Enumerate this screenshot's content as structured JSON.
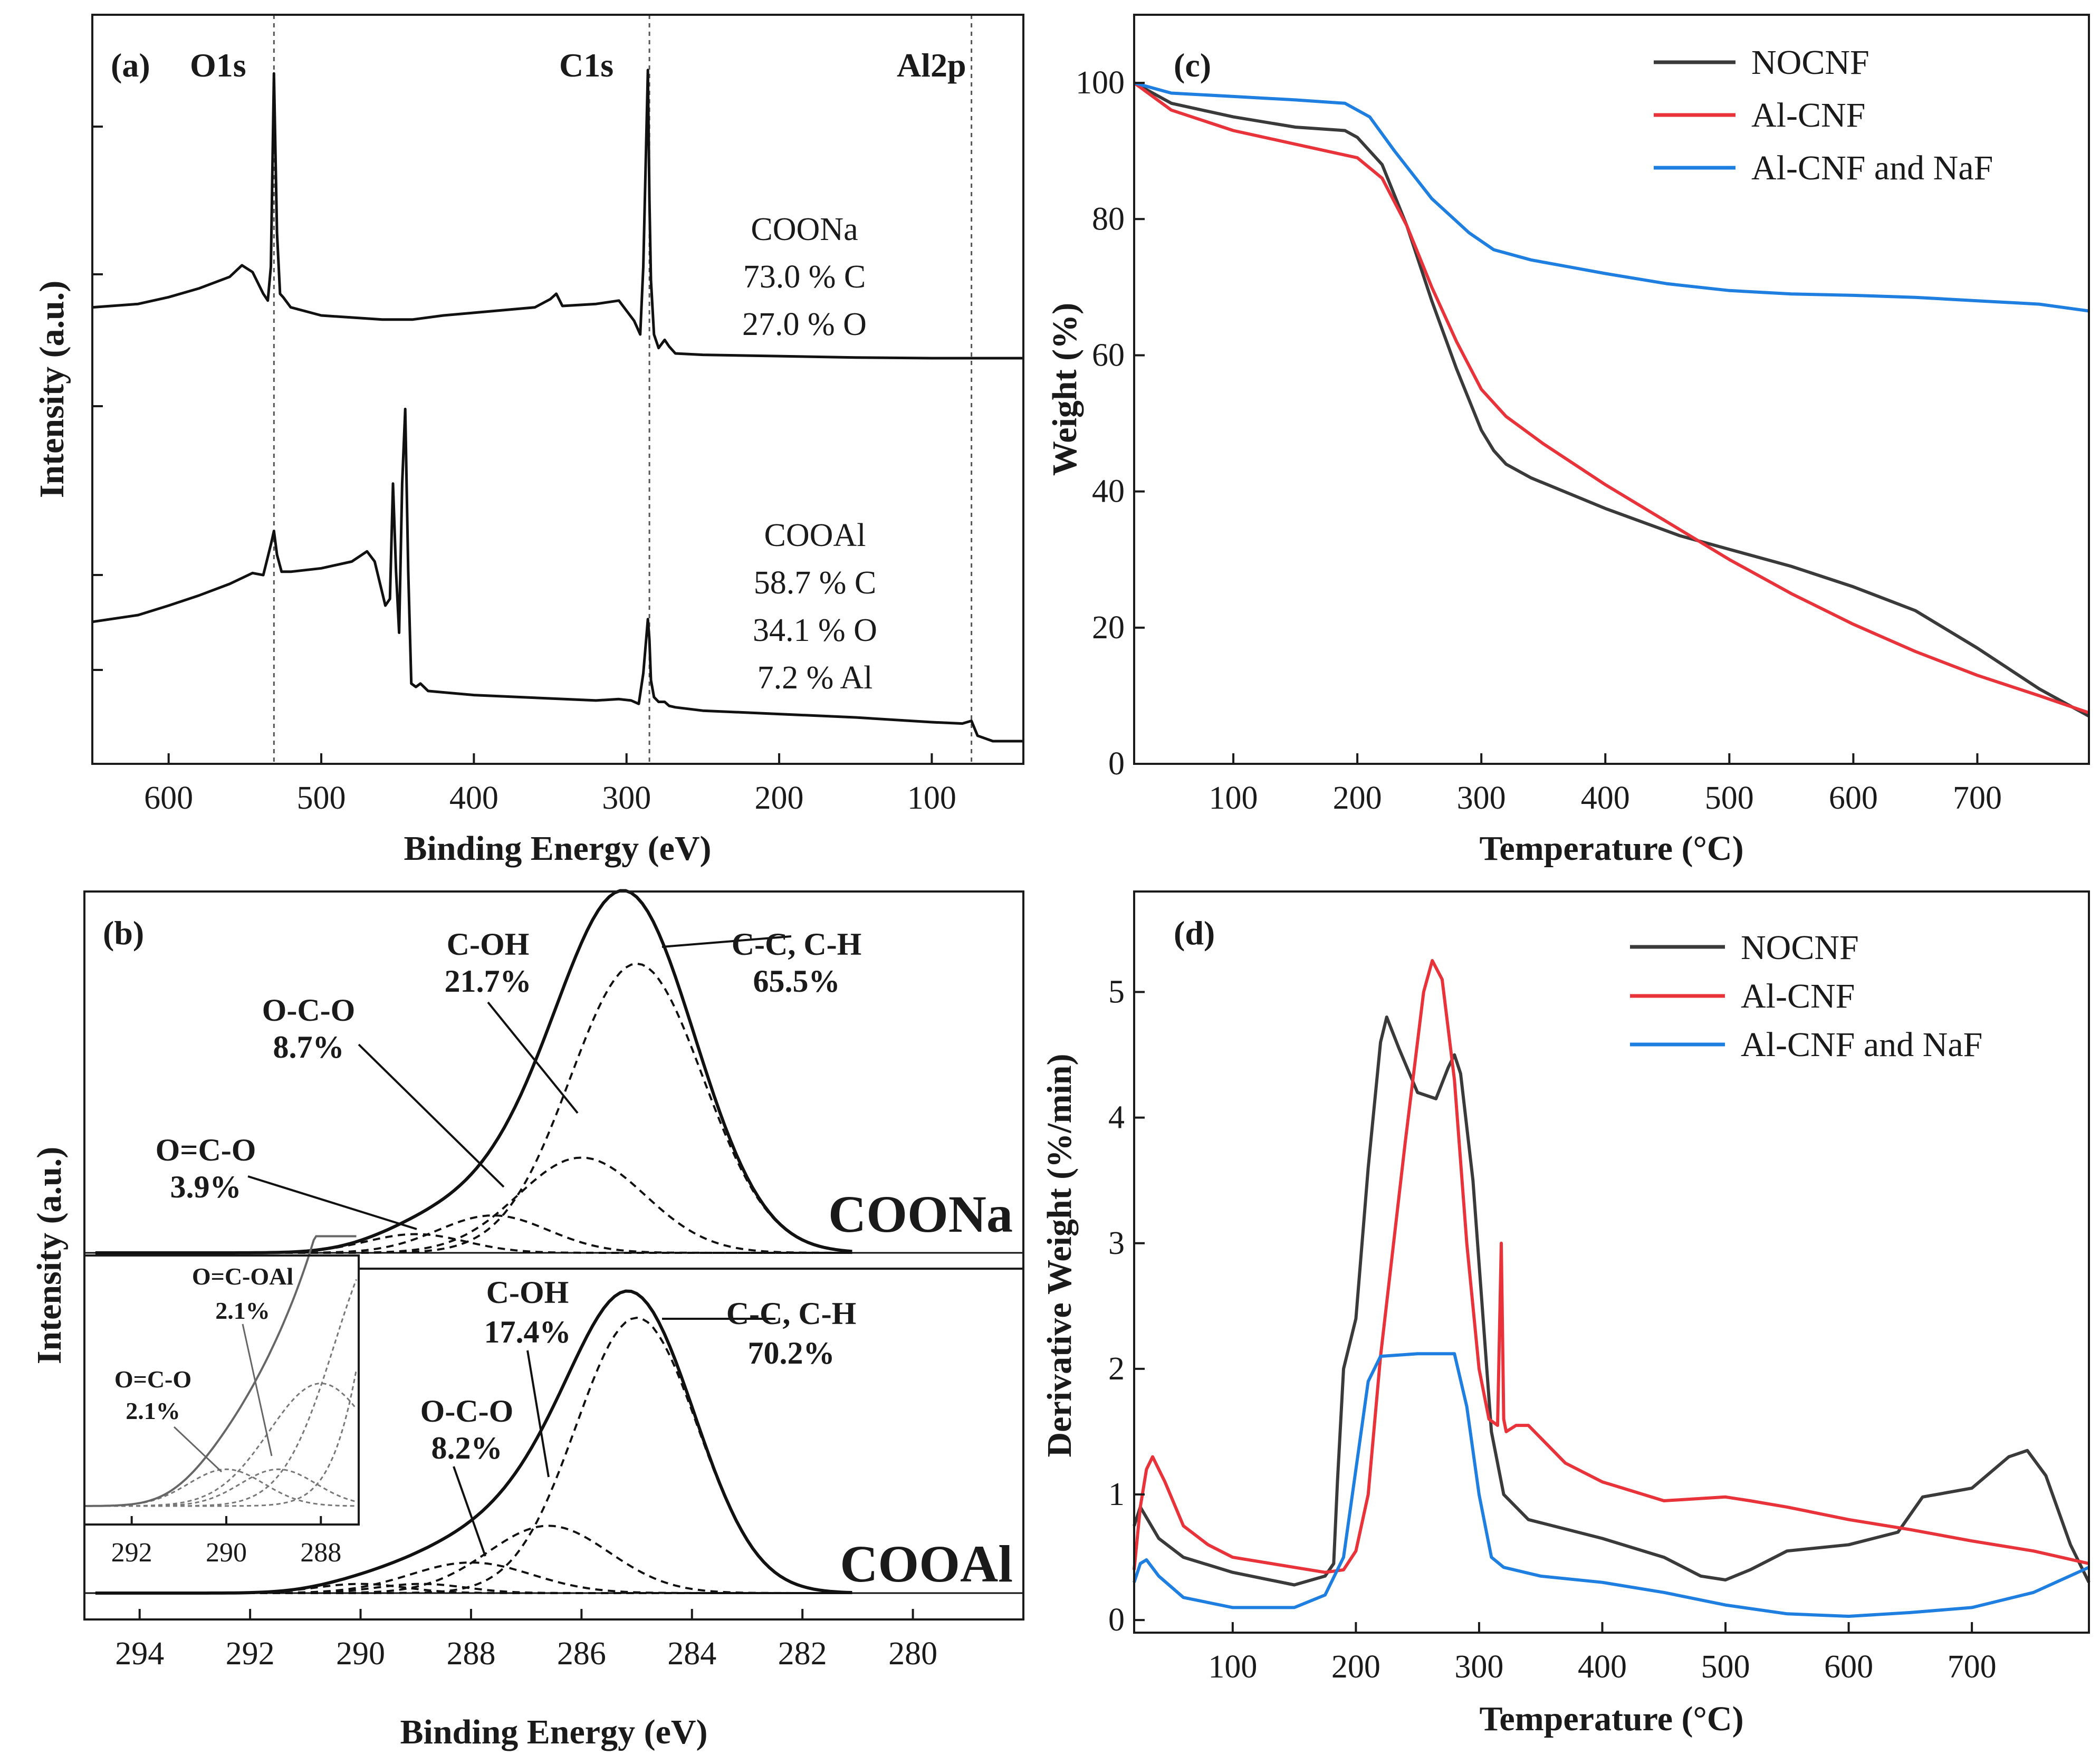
{
  "chart_data": [
    {
      "id": "a",
      "type": "line",
      "panel_label": "(a)",
      "xlabel": "Binding Energy (eV)",
      "ylabel": "Intensity (a.u.)",
      "xlim": [
        650,
        40
      ],
      "x_reversed": true,
      "xticks": [
        600,
        500,
        400,
        300,
        200,
        100
      ],
      "peak_labels": [
        {
          "text": "O1s",
          "x": 531
        },
        {
          "text": "C1s",
          "x": 285
        },
        {
          "text": "Al2p",
          "x": 74
        }
      ],
      "reference_lines_x": [
        531,
        285,
        74
      ],
      "series": [
        {
          "name": "COONa",
          "annotation": [
            "COONa",
            "73.0 % C",
            "27.0 % O"
          ],
          "x": [
            650,
            620,
            600,
            580,
            560,
            552,
            545,
            538,
            535,
            533,
            531,
            529,
            527,
            525,
            520,
            500,
            480,
            460,
            440,
            420,
            400,
            360,
            350,
            346,
            342,
            320,
            305,
            295,
            291,
            289,
            286,
            285,
            284,
            282,
            279,
            275,
            272,
            268,
            250,
            200,
            150,
            100,
            74,
            40
          ],
          "y": [
            0.64,
            0.645,
            0.655,
            0.668,
            0.685,
            0.702,
            0.692,
            0.66,
            0.65,
            0.7,
            0.985,
            0.75,
            0.66,
            0.655,
            0.64,
            0.628,
            0.625,
            0.622,
            0.622,
            0.628,
            0.632,
            0.64,
            0.652,
            0.66,
            0.642,
            0.645,
            0.65,
            0.62,
            0.6,
            0.7,
            0.99,
            0.8,
            0.68,
            0.6,
            0.58,
            0.592,
            0.582,
            0.572,
            0.57,
            0.568,
            0.566,
            0.565,
            0.565,
            0.565
          ]
        },
        {
          "name": "COOAl",
          "annotation": [
            "COOAl",
            "58.7 % C",
            "34.1 % O",
            "7.2 % Al"
          ],
          "x": [
            650,
            620,
            600,
            580,
            560,
            545,
            538,
            533,
            531,
            529,
            526,
            520,
            500,
            480,
            470,
            465,
            458,
            455,
            453,
            451,
            449,
            447,
            445,
            443,
            441,
            438,
            435,
            430,
            420,
            400,
            360,
            320,
            305,
            297,
            292,
            289,
            286,
            285,
            284,
            282,
            279,
            275,
            272,
            268,
            250,
            200,
            150,
            100,
            80,
            74,
            70,
            60,
            40
          ],
          "y": [
            0.176,
            0.186,
            0.2,
            0.215,
            0.232,
            0.248,
            0.245,
            0.29,
            0.31,
            0.275,
            0.25,
            0.25,
            0.255,
            0.265,
            0.28,
            0.265,
            0.2,
            0.21,
            0.38,
            0.25,
            0.16,
            0.38,
            0.49,
            0.25,
            0.085,
            0.08,
            0.085,
            0.074,
            0.072,
            0.068,
            0.064,
            0.06,
            0.062,
            0.06,
            0.055,
            0.1,
            0.18,
            0.15,
            0.09,
            0.065,
            0.058,
            0.058,
            0.052,
            0.05,
            0.045,
            0.04,
            0.035,
            0.028,
            0.026,
            0.03,
            0.008,
            0.0,
            0.0
          ]
        }
      ]
    },
    {
      "id": "b",
      "type": "line",
      "panel_label": "(b)",
      "xlabel": "Binding Energy (eV)",
      "ylabel": "Intensity (a.u.)",
      "xlim": [
        295,
        278
      ],
      "x_reversed": true,
      "xticks": [
        294,
        292,
        290,
        288,
        286,
        284,
        282,
        280
      ],
      "samples": [
        {
          "name": "COONa",
          "envelope_style": "solid",
          "components": [
            {
              "label": "C-C, C-H",
              "percent": "65.5%",
              "center": 285.0,
              "height": 0.85,
              "sigma": 1.2
            },
            {
              "label": "C-OH",
              "percent": "21.7%",
              "center": 286.0,
              "height": 0.28,
              "sigma": 1.15
            },
            {
              "label": "O-C-O",
              "percent": "8.7%",
              "center": 287.6,
              "height": 0.11,
              "sigma": 1.0
            },
            {
              "label": "O=C-O",
              "percent": "3.9%",
              "center": 289.0,
              "height": 0.055,
              "sigma": 0.9
            }
          ]
        },
        {
          "name": "COOAl",
          "envelope_style": "solid",
          "components": [
            {
              "label": "C-C, C-H",
              "percent": "70.2%",
              "center": 285.0,
              "height": 0.9,
              "sigma": 1.1
            },
            {
              "label": "C-OH",
              "percent": "17.4%",
              "center": 286.6,
              "height": 0.22,
              "sigma": 1.1
            },
            {
              "label": "O-C-O",
              "percent": "8.2%",
              "center": 288.0,
              "height": 0.1,
              "sigma": 1.1
            },
            {
              "label": "O=C-OAl",
              "percent": "2.1%",
              "center": 288.9,
              "height": 0.03,
              "sigma": 0.8
            },
            {
              "label": "O=C-O",
              "percent": "2.1%",
              "center": 290.0,
              "height": 0.03,
              "sigma": 0.8
            }
          ]
        }
      ],
      "inset": {
        "xlim": [
          293,
          287.2
        ],
        "xticks": [
          292,
          290,
          288
        ],
        "labels": [
          {
            "label": "O=C-OAl",
            "percent": "2.1%"
          },
          {
            "label": "O=C-O",
            "percent": "2.1%"
          }
        ]
      }
    },
    {
      "id": "c",
      "type": "line",
      "panel_label": "(c)",
      "xlabel": "Temperature (°C)",
      "ylabel": "Weight (%)",
      "xlim": [
        20,
        790
      ],
      "ylim": [
        0,
        110
      ],
      "xticks": [
        100,
        200,
        300,
        400,
        500,
        600,
        700
      ],
      "yticks": [
        0,
        20,
        40,
        60,
        80,
        100
      ],
      "legend_position": "top-right",
      "series": [
        {
          "name": "NOCNF",
          "color": "#3a3a3a",
          "x": [
            20,
            50,
            100,
            150,
            190,
            200,
            220,
            240,
            260,
            280,
            300,
            310,
            320,
            340,
            400,
            460,
            500,
            550,
            600,
            650,
            700,
            750,
            790
          ],
          "y": [
            100,
            97,
            95,
            93.5,
            93,
            92,
            88,
            79,
            68,
            58,
            49,
            46,
            44,
            42,
            37.5,
            33.5,
            31.5,
            29,
            26,
            22.5,
            17,
            11,
            7
          ]
        },
        {
          "name": "Al-CNF",
          "color": "#e8333a",
          "x": [
            20,
            50,
            100,
            150,
            200,
            220,
            240,
            260,
            280,
            300,
            320,
            350,
            400,
            450,
            500,
            550,
            600,
            650,
            700,
            750,
            790
          ],
          "y": [
            100,
            96,
            93,
            91,
            89,
            86,
            79,
            70,
            62,
            55,
            51,
            47,
            41,
            35.5,
            30,
            25,
            20.5,
            16.5,
            13,
            10,
            7.5
          ]
        },
        {
          "name": "Al-CNF and NaF",
          "color": "#1f7fe0",
          "x": [
            20,
            50,
            100,
            150,
            190,
            210,
            230,
            260,
            290,
            310,
            340,
            400,
            450,
            500,
            550,
            600,
            650,
            700,
            750,
            790
          ],
          "y": [
            100,
            98.5,
            98,
            97.5,
            97,
            95,
            90,
            83,
            78,
            75.5,
            74,
            72,
            70.5,
            69.5,
            69,
            68.8,
            68.5,
            68,
            67.5,
            66.5
          ]
        }
      ]
    },
    {
      "id": "d",
      "type": "line",
      "panel_label": "(d)",
      "xlabel": "Temperature (°C)",
      "ylabel": "Derivative Weight (%/min)",
      "xlim": [
        20,
        795
      ],
      "ylim": [
        -0.1,
        5.8
      ],
      "xticks": [
        100,
        200,
        300,
        400,
        500,
        600,
        700
      ],
      "yticks": [
        0,
        1,
        2,
        3,
        4,
        5
      ],
      "legend_position": "top-right",
      "series": [
        {
          "name": "NOCNF",
          "color": "#3a3a3a",
          "x": [
            20,
            25,
            40,
            60,
            100,
            150,
            175,
            182,
            185,
            190,
            200,
            210,
            220,
            225,
            235,
            250,
            265,
            275,
            280,
            285,
            295,
            310,
            320,
            340,
            400,
            450,
            480,
            500,
            520,
            550,
            600,
            640,
            660,
            700,
            730,
            745,
            760,
            780,
            795
          ],
          "y": [
            0.75,
            0.9,
            0.65,
            0.5,
            0.38,
            0.28,
            0.35,
            0.45,
            1.1,
            2.0,
            2.4,
            3.6,
            4.6,
            4.8,
            4.55,
            4.2,
            4.15,
            4.4,
            4.5,
            4.35,
            3.5,
            1.5,
            1.0,
            0.8,
            0.65,
            0.5,
            0.35,
            0.32,
            0.4,
            0.55,
            0.6,
            0.7,
            0.98,
            1.05,
            1.3,
            1.35,
            1.15,
            0.6,
            0.3
          ]
        },
        {
          "name": "Al-CNF",
          "color": "#e8333a",
          "x": [
            20,
            25,
            30,
            35,
            45,
            60,
            80,
            100,
            150,
            175,
            190,
            200,
            210,
            220,
            240,
            255,
            262,
            270,
            280,
            290,
            300,
            308,
            315,
            318,
            320,
            322,
            330,
            340,
            350,
            370,
            400,
            450,
            500,
            520,
            550,
            600,
            650,
            700,
            750,
            795
          ],
          "y": [
            0.4,
            0.9,
            1.2,
            1.3,
            1.1,
            0.75,
            0.6,
            0.5,
            0.42,
            0.38,
            0.4,
            0.55,
            1.0,
            2.1,
            3.8,
            5.0,
            5.25,
            5.1,
            4.3,
            3.0,
            2.0,
            1.6,
            1.55,
            3.0,
            1.6,
            1.5,
            1.55,
            1.55,
            1.45,
            1.25,
            1.1,
            0.95,
            0.98,
            0.95,
            0.9,
            0.8,
            0.72,
            0.63,
            0.55,
            0.45
          ]
        },
        {
          "name": "Al-CNF and NaF",
          "color": "#1f7fe0",
          "x": [
            20,
            25,
            30,
            40,
            60,
            100,
            150,
            175,
            190,
            200,
            210,
            220,
            250,
            280,
            290,
            300,
            310,
            320,
            350,
            400,
            450,
            500,
            550,
            600,
            650,
            700,
            750,
            795
          ],
          "y": [
            0.3,
            0.45,
            0.48,
            0.35,
            0.18,
            0.1,
            0.1,
            0.2,
            0.5,
            1.2,
            1.9,
            2.1,
            2.12,
            2.12,
            1.7,
            1.0,
            0.5,
            0.42,
            0.35,
            0.3,
            0.22,
            0.12,
            0.05,
            0.03,
            0.06,
            0.1,
            0.22,
            0.42
          ]
        }
      ]
    }
  ],
  "annotations": {
    "a": {
      "peak_labels": [
        "O1s",
        "C1s",
        "Al2p"
      ],
      "coona": [
        "COONa",
        "73.0 % C",
        "27.0 % O"
      ],
      "cooal": [
        "COOAl",
        "58.7 % C",
        "34.1 % O",
        "7.2 % Al"
      ]
    },
    "b": {
      "coona_name": "COONa",
      "cooal_name": "COOAl",
      "coona_labels": [
        {
          "l1": "C-OH",
          "l2": "21.7%"
        },
        {
          "l1": "C-C, C-H",
          "l2": "65.5%"
        },
        {
          "l1": "O-C-O",
          "l2": "8.7%"
        },
        {
          "l1": "O=C-O",
          "l2": "3.9%"
        }
      ],
      "cooal_labels": [
        {
          "l1": "C-OH",
          "l2": "17.4%"
        },
        {
          "l1": "C-C, C-H",
          "l2": "70.2%"
        },
        {
          "l1": "O-C-O",
          "l2": "8.2%"
        }
      ],
      "inset_labels": [
        {
          "l1": "O=C-OAl",
          "l2": "2.1%"
        },
        {
          "l1": "O=C-O",
          "l2": "2.1%"
        }
      ]
    }
  }
}
